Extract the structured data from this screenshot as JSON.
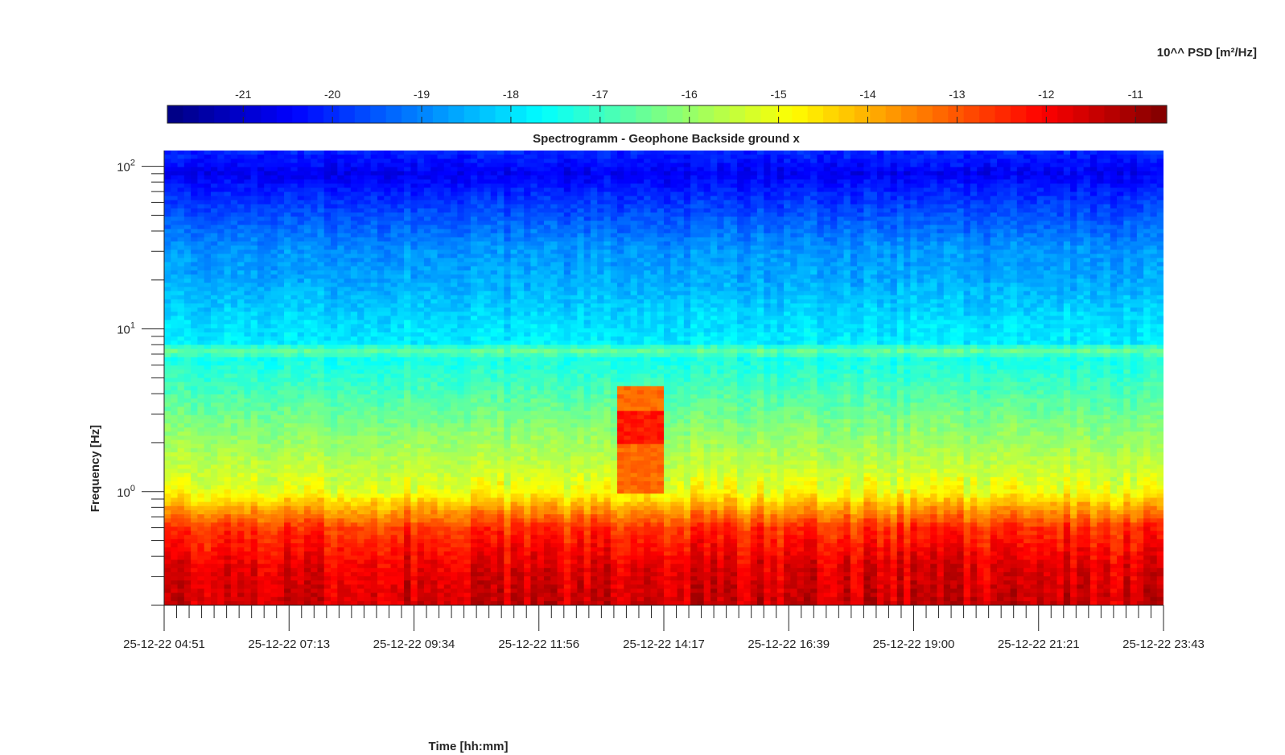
{
  "chart_data": {
    "type": "heatmap",
    "title": "Spectrogramm - Geophone Backside ground x",
    "xlabel": "Time [hh:mm]",
    "ylabel": "Frequency [Hz]",
    "x_tick_labels": [
      "25-12-22 04:51",
      "25-12-22 07:13",
      "25-12-22 09:34",
      "25-12-22 11:56",
      "25-12-22 14:17",
      "25-12-22 16:39",
      "25-12-22 19:00",
      "25-12-22 21:21",
      "25-12-22 23:43"
    ],
    "y_scale": "log",
    "ylim": [
      0.2,
      125
    ],
    "y_ticks": [
      {
        "base": "10",
        "exp": "0",
        "value": 1
      },
      {
        "base": "10",
        "exp": "1",
        "value": 10
      },
      {
        "base": "10",
        "exp": "2",
        "value": 100
      }
    ],
    "colorbar": {
      "title": "10^^ PSD [m²/Hz]",
      "colormap": "jet",
      "clim": [
        -21.85,
        -10.65
      ],
      "ticks": [
        "-21",
        "-20",
        "-19",
        "-18",
        "-17",
        "-16",
        "-15",
        "-14",
        "-13",
        "-12",
        "-11"
      ],
      "tick_values": [
        -21,
        -20,
        -19,
        -18,
        -17,
        -16,
        -15,
        -14,
        -13,
        -12,
        -11
      ]
    },
    "frequency_profile": {
      "note_units": "frequency in Hz, log10 PSD",
      "points": [
        [
          0.2,
          -11.5
        ],
        [
          0.35,
          -11.8
        ],
        [
          0.6,
          -12.6
        ],
        [
          0.85,
          -14.2
        ],
        [
          1.0,
          -15.0
        ],
        [
          1.4,
          -15.5
        ],
        [
          2.5,
          -16.2
        ],
        [
          4.0,
          -16.8
        ],
        [
          6.5,
          -17.4
        ],
        [
          7.5,
          -16.4
        ],
        [
          8.0,
          -17.8
        ],
        [
          12,
          -18.1
        ],
        [
          20,
          -18.6
        ],
        [
          30,
          -18.8
        ],
        [
          45,
          -19.4
        ],
        [
          70,
          -20.1
        ],
        [
          90,
          -20.6
        ],
        [
          125,
          -20.0
        ]
      ]
    },
    "events": [
      {
        "start": "25-12-22 13:27",
        "end": "25-12-22 14:17",
        "fmin": 1.0,
        "fmax": 4.5,
        "peak_log_psd": -12.3
      }
    ],
    "grid": false
  },
  "colors": {
    "jet_anchors": [
      "#00007f",
      "#0000ff",
      "#007fff",
      "#00ffff",
      "#7fff7f",
      "#ffff00",
      "#ff7f00",
      "#ff0000",
      "#7f0000"
    ]
  }
}
